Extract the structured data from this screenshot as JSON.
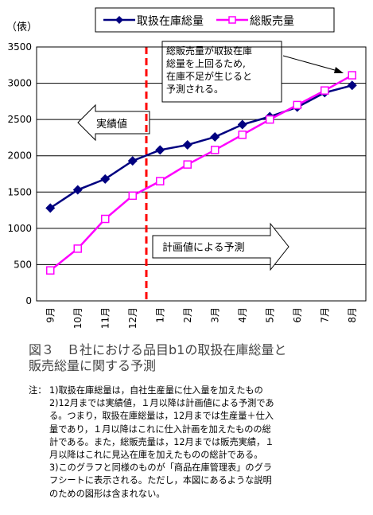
{
  "chart_data": {
    "type": "line",
    "title": "",
    "ylabel": "（俵）",
    "xlabel": "",
    "categories": [
      "9月",
      "10月",
      "11月",
      "12月",
      "1月",
      "2月",
      "3月",
      "4月",
      "5月",
      "6月",
      "7月",
      "8月"
    ],
    "ylim": [
      0,
      3500
    ],
    "yticks": [
      "0",
      "500",
      "1000",
      "1500",
      "2000",
      "2500",
      "3000",
      "3500"
    ],
    "grid": true,
    "legend_position": "top",
    "series": [
      {
        "name": "取扱在庫総量",
        "color": "#000080",
        "marker": "diamond",
        "values": [
          1280,
          1530,
          1680,
          1930,
          2080,
          2150,
          2260,
          2430,
          2540,
          2670,
          2870,
          2970
        ]
      },
      {
        "name": "総販売量",
        "color": "#ff00ff",
        "marker": "square",
        "values": [
          420,
          720,
          1130,
          1450,
          1650,
          1880,
          2080,
          2290,
          2500,
          2700,
          2900,
          3110
        ]
      }
    ],
    "annotations": {
      "jisseki": "実績値",
      "keikaku": "計画値による予測",
      "callout": [
        "総販売量が取扱在庫",
        "総量を上回るため,",
        "在庫不足が生じると",
        "予測される。"
      ]
    },
    "divider_color": "#ff0000"
  },
  "caption": {
    "line1": "図３　Ｂ社における品目b1の取扱在庫総量と",
    "line2": "販売総量に関する予測"
  },
  "notes": {
    "tag": "注：",
    "items": [
      {
        "lines": [
          "1)取扱在庫総量は，自社生産量に仕入量を加えたもの"
        ]
      },
      {
        "lines": [
          "2)12月までは実績値，１月以降は計画値による予測であ",
          "る。つまり，取扱在庫総量は，12月までは生産量＋仕入",
          "量であり，１月以降はこれに仕入計画を加えたものの総",
          "計である。また，総販売量は，12月までは販売実績，１",
          "月以降はこれに見込在庫を加えたものの総計である。"
        ]
      },
      {
        "lines": [
          "3)このグラフと同様のものが「商品在庫管理表」のグラ",
          "フシートに表示される。ただし，本図にあるような説明",
          "のための図形は含まれない。"
        ]
      }
    ]
  }
}
